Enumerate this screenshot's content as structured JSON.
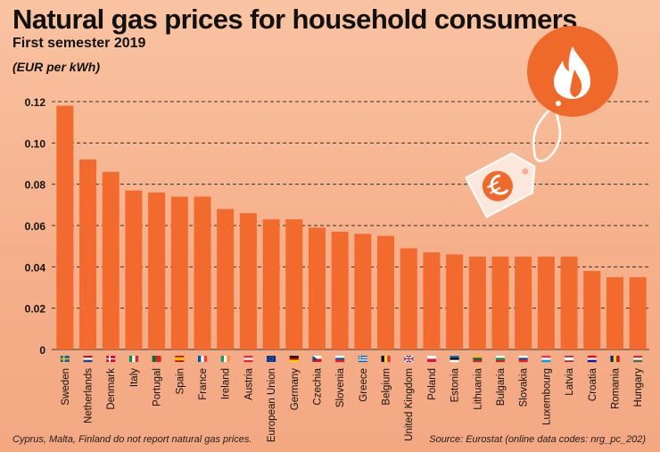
{
  "header": {
    "title": "Natural gas prices for household consumers",
    "subtitle": "First semester 2019",
    "unit": "(EUR per kWh)"
  },
  "footer": {
    "note": "Cyprus, Malta, Finland do not report natural gas prices.",
    "source": "Source: Eurostat (online data codes: nrg_pc_202)"
  },
  "icons": [
    "flame-icon",
    "euro-price-tag-icon"
  ],
  "colors": {
    "bar": "#f26a2e",
    "background": "#f7b894",
    "badge": "#ef6a2a"
  },
  "chart_data": {
    "type": "bar",
    "title": "Natural gas prices for household consumers",
    "subtitle": "First semester 2019",
    "ylabel": "(EUR per kWh)",
    "xlabel": "",
    "ylim": [
      0,
      0.12
    ],
    "yticks": [
      "0",
      "0.02",
      "0.04",
      "0.06",
      "0.08",
      "0.10",
      "0.12"
    ],
    "grid": "dashed-horizontal",
    "categories": [
      "Sweden",
      "Netherlands",
      "Denmark",
      "Italy",
      "Portugal",
      "Spain",
      "France",
      "Ireland",
      "Austria",
      "European Union",
      "Germany",
      "Czechia",
      "Slovenia",
      "Greece",
      "Belgium",
      "United Kingdom",
      "Poland",
      "Estonia",
      "Lithuania",
      "Bulgaria",
      "Slovakia",
      "Luxembourg",
      "Latvia",
      "Croatia",
      "Romania",
      "Hungary"
    ],
    "values": [
      0.118,
      0.092,
      0.086,
      0.077,
      0.076,
      0.074,
      0.074,
      0.068,
      0.066,
      0.063,
      0.063,
      0.059,
      0.057,
      0.056,
      0.055,
      0.049,
      0.047,
      0.046,
      0.045,
      0.045,
      0.045,
      0.045,
      0.045,
      0.038,
      0.035,
      0.035
    ],
    "flags": [
      {
        "type": "nordic",
        "bg": "#1f5fb0",
        "cross": "#f7d10a"
      },
      {
        "type": "h3",
        "colors": [
          "#ae1c28",
          "#ffffff",
          "#21468b"
        ]
      },
      {
        "type": "nordic",
        "bg": "#c8102e",
        "cross": "#ffffff"
      },
      {
        "type": "v3",
        "colors": [
          "#009246",
          "#ffffff",
          "#ce2b37"
        ]
      },
      {
        "type": "v2",
        "colors": [
          "#046a38",
          "#da291c"
        ]
      },
      {
        "type": "h3w",
        "colors": [
          "#c60b1e",
          "#ffc400",
          "#c60b1e"
        ]
      },
      {
        "type": "v3",
        "colors": [
          "#0055a4",
          "#ffffff",
          "#ef4135"
        ]
      },
      {
        "type": "v3",
        "colors": [
          "#169b62",
          "#ffffff",
          "#ff883e"
        ]
      },
      {
        "type": "h3",
        "colors": [
          "#ed2939",
          "#ffffff",
          "#ed2939"
        ]
      },
      {
        "type": "solid",
        "colors": [
          "#003399"
        ]
      },
      {
        "type": "h3",
        "colors": [
          "#000000",
          "#dd0000",
          "#ffce00"
        ]
      },
      {
        "type": "h2tri",
        "colors": [
          "#ffffff",
          "#d7141a",
          "#11457e"
        ]
      },
      {
        "type": "h3",
        "colors": [
          "#ffffff",
          "#005da4",
          "#ed1c24"
        ]
      },
      {
        "type": "stripes",
        "colors": [
          "#0d5eaf",
          "#ffffff"
        ]
      },
      {
        "type": "v3",
        "colors": [
          "#000000",
          "#fdda24",
          "#ef3340"
        ]
      },
      {
        "type": "uk",
        "colors": [
          "#012169",
          "#ffffff",
          "#c8102e"
        ]
      },
      {
        "type": "h2",
        "colors": [
          "#ffffff",
          "#dc143c"
        ]
      },
      {
        "type": "h3",
        "colors": [
          "#0072ce",
          "#000000",
          "#ffffff"
        ]
      },
      {
        "type": "h3",
        "colors": [
          "#fdb913",
          "#006a44",
          "#c1272d"
        ]
      },
      {
        "type": "h3",
        "colors": [
          "#ffffff",
          "#00966e",
          "#d62612"
        ]
      },
      {
        "type": "h3",
        "colors": [
          "#ffffff",
          "#0b4ea2",
          "#ee1c25"
        ]
      },
      {
        "type": "h3",
        "colors": [
          "#ef3340",
          "#ffffff",
          "#00a3e0"
        ]
      },
      {
        "type": "h3w",
        "colors": [
          "#9e3039",
          "#ffffff",
          "#9e3039"
        ]
      },
      {
        "type": "h3",
        "colors": [
          "#ff0000",
          "#ffffff",
          "#171796"
        ]
      },
      {
        "type": "v3",
        "colors": [
          "#002b7f",
          "#fcd116",
          "#ce1126"
        ]
      },
      {
        "type": "h3",
        "colors": [
          "#ce2939",
          "#ffffff",
          "#477050"
        ]
      }
    ]
  }
}
